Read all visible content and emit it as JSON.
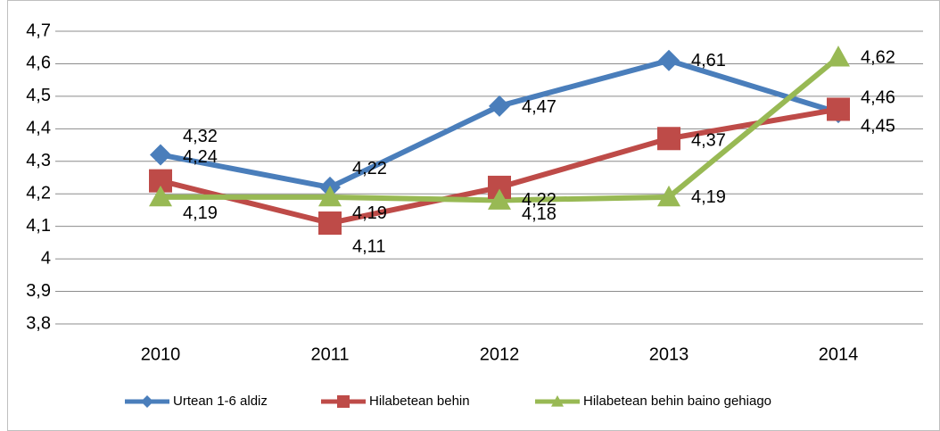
{
  "chart_data": {
    "type": "line",
    "categories": [
      "2010",
      "2011",
      "2012",
      "2013",
      "2014"
    ],
    "series": [
      {
        "name": "Urtean 1-6 aldiz",
        "color": "#4a7ebb",
        "marker": "diamond",
        "values": [
          4.32,
          4.22,
          4.47,
          4.61,
          4.45
        ],
        "value_labels": [
          "4,32",
          "4,22",
          "4,47",
          "4,61",
          "4,45"
        ]
      },
      {
        "name": "Hilabetean behin",
        "color": "#be4b48",
        "marker": "square",
        "values": [
          4.24,
          4.11,
          4.22,
          4.37,
          4.46
        ],
        "value_labels": [
          "4,24",
          "4,11",
          "4,22",
          "4,37",
          "4,46"
        ]
      },
      {
        "name": "Hilabetean behin baino gehiago",
        "color": "#98b954",
        "marker": "triangle",
        "values": [
          4.19,
          4.19,
          4.18,
          4.19,
          4.62
        ],
        "value_labels": [
          "4,19",
          "4,19",
          "4,18",
          "4,19",
          "4,62"
        ]
      }
    ],
    "ylim": [
      3.8,
      4.7
    ],
    "yticks": [
      {
        "value": 3.8,
        "label": "3,8"
      },
      {
        "value": 3.9,
        "label": "3,9"
      },
      4,
      {
        "value": 4.1,
        "label": "4,1"
      },
      {
        "value": 4.2,
        "label": "4,2"
      },
      {
        "value": 4.3,
        "label": "4,3"
      },
      {
        "value": 4.4,
        "label": "4,4"
      },
      {
        "value": 4.5,
        "label": "4,5"
      },
      {
        "value": 4.6,
        "label": "4,6"
      },
      {
        "value": 4.7,
        "label": "4,7"
      }
    ],
    "grid": true,
    "legend": "bottom"
  }
}
